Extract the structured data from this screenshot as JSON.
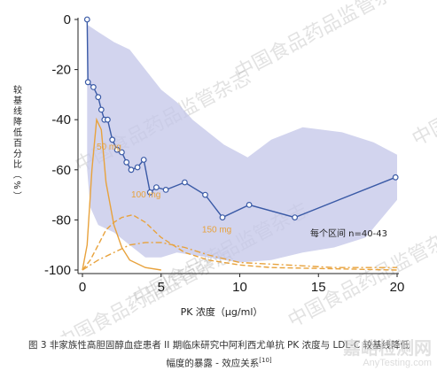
{
  "chart_data": {
    "type": "line",
    "xlabel": "PK 浓度（μg/ml）",
    "ylabel": "较基线降低百分比（%）",
    "xlim": [
      0,
      20
    ],
    "ylim": [
      -100,
      0
    ],
    "x_ticks": [
      "0",
      "5",
      "10",
      "15",
      "20"
    ],
    "y_ticks": [
      "0",
      "-20",
      "-40",
      "-60",
      "-80",
      "-100"
    ],
    "grid": false,
    "series": [
      {
        "kind": "response_median",
        "color": "#3a5aa6",
        "points": [
          {
            "x": 0.3,
            "y": 0
          },
          {
            "x": 0.35,
            "y": -25
          },
          {
            "x": 0.7,
            "y": -27
          },
          {
            "x": 1.0,
            "y": -31
          },
          {
            "x": 1.2,
            "y": -36
          },
          {
            "x": 1.4,
            "y": -40
          },
          {
            "x": 1.6,
            "y": -40
          },
          {
            "x": 1.9,
            "y": -48
          },
          {
            "x": 2.2,
            "y": -52
          },
          {
            "x": 2.5,
            "y": -53
          },
          {
            "x": 2.8,
            "y": -57
          },
          {
            "x": 3.1,
            "y": -60
          },
          {
            "x": 3.5,
            "y": -59
          },
          {
            "x": 3.9,
            "y": -56
          },
          {
            "x": 4.3,
            "y": -69
          },
          {
            "x": 4.7,
            "y": -67
          },
          {
            "x": 5.3,
            "y": -68
          },
          {
            "x": 6.5,
            "y": -65
          },
          {
            "x": 7.8,
            "y": -70
          },
          {
            "x": 8.9,
            "y": -79
          },
          {
            "x": 10.6,
            "y": -74
          },
          {
            "x": 13.5,
            "y": -79
          },
          {
            "x": 19.9,
            "y": -63
          }
        ],
        "band_upper": [
          {
            "x": 0.3,
            "y": -2
          },
          {
            "x": 1.0,
            "y": -5
          },
          {
            "x": 2.0,
            "y": -9
          },
          {
            "x": 3.0,
            "y": -12
          },
          {
            "x": 4.0,
            "y": -20
          },
          {
            "x": 5.0,
            "y": -28
          },
          {
            "x": 6.0,
            "y": -33
          },
          {
            "x": 7.0,
            "y": -40
          },
          {
            "x": 8.0,
            "y": -45
          },
          {
            "x": 9.0,
            "y": -50
          },
          {
            "x": 10.5,
            "y": -55
          },
          {
            "x": 12.0,
            "y": -48
          },
          {
            "x": 14.0,
            "y": -43
          },
          {
            "x": 16.5,
            "y": -45
          },
          {
            "x": 18.5,
            "y": -49
          },
          {
            "x": 20.0,
            "y": -54
          }
        ],
        "band_lower": [
          {
            "x": 20.0,
            "y": -72
          },
          {
            "x": 18.0,
            "y": -87
          },
          {
            "x": 16.0,
            "y": -91
          },
          {
            "x": 14.0,
            "y": -93
          },
          {
            "x": 12.0,
            "y": -96
          },
          {
            "x": 10.0,
            "y": -97
          },
          {
            "x": 8.0,
            "y": -95
          },
          {
            "x": 6.0,
            "y": -93
          },
          {
            "x": 5.0,
            "y": -95
          },
          {
            "x": 4.0,
            "y": -95
          },
          {
            "x": 3.0,
            "y": -90
          },
          {
            "x": 2.0,
            "y": -85
          },
          {
            "x": 1.0,
            "y": -82
          },
          {
            "x": 0.5,
            "y": -75
          },
          {
            "x": 0.3,
            "y": -60
          }
        ]
      },
      {
        "name": "50 mg",
        "color": "#e8a23c",
        "dash": "solid",
        "points": [
          {
            "x": 0.0,
            "y": -100
          },
          {
            "x": 0.3,
            "y": -90
          },
          {
            "x": 0.6,
            "y": -60
          },
          {
            "x": 0.9,
            "y": -40
          },
          {
            "x": 1.2,
            "y": -44
          },
          {
            "x": 1.5,
            "y": -65
          },
          {
            "x": 2.0,
            "y": -82
          },
          {
            "x": 2.5,
            "y": -91
          },
          {
            "x": 3.0,
            "y": -96
          },
          {
            "x": 4.0,
            "y": -99
          },
          {
            "x": 5.0,
            "y": -100
          }
        ]
      },
      {
        "name": "100 mg",
        "color": "#e8a23c",
        "dash": "dashed",
        "points": [
          {
            "x": 0.0,
            "y": -100
          },
          {
            "x": 0.5,
            "y": -96
          },
          {
            "x": 1.0,
            "y": -90
          },
          {
            "x": 1.5,
            "y": -84
          },
          {
            "x": 2.0,
            "y": -81
          },
          {
            "x": 2.5,
            "y": -79
          },
          {
            "x": 3.2,
            "y": -78
          },
          {
            "x": 4.0,
            "y": -81
          },
          {
            "x": 5.0,
            "y": -87
          },
          {
            "x": 6.5,
            "y": -93
          },
          {
            "x": 8.0,
            "y": -96
          },
          {
            "x": 10.0,
            "y": -98
          },
          {
            "x": 12.0,
            "y": -99
          },
          {
            "x": 20.0,
            "y": -100
          }
        ]
      },
      {
        "name": "150 mg",
        "color": "#e8a23c",
        "dash": "dashdot",
        "points": [
          {
            "x": 0.0,
            "y": -100
          },
          {
            "x": 1.0,
            "y": -96
          },
          {
            "x": 2.0,
            "y": -93
          },
          {
            "x": 3.0,
            "y": -90
          },
          {
            "x": 4.0,
            "y": -89
          },
          {
            "x": 5.0,
            "y": -89
          },
          {
            "x": 6.5,
            "y": -91
          },
          {
            "x": 8.0,
            "y": -94
          },
          {
            "x": 10.0,
            "y": -97
          },
          {
            "x": 13.0,
            "y": -98
          },
          {
            "x": 16.0,
            "y": -99
          },
          {
            "x": 20.0,
            "y": -99
          }
        ]
      }
    ],
    "annotation": "每个区间 n=40-43"
  },
  "caption": {
    "line1": "图 3  非家族性高胆固醇血症患者 II 期临床研究中阿利西尤单抗 PK 浓度与 LDL-C 较基线降低",
    "line2": "幅度的暴露 - 效应关系",
    "ref": "[10]"
  },
  "watermarks": [
    "中国食品药品监管杂志",
    "中国食品药品监管杂志",
    "中国食品药品监管杂志",
    "中国食品药品监管杂志",
    "中国食品药品监管杂志",
    "中国食品药品监管杂志"
  ],
  "logo": {
    "main": "嘉峪检测网",
    "sub": "AnyTesting.com"
  }
}
